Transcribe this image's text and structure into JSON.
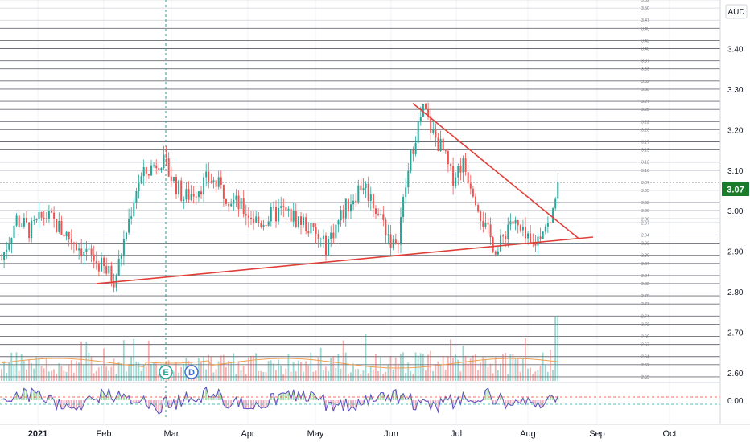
{
  "chart_data": {
    "type": "candlestick",
    "currency_label": "AUD",
    "last_price_label": "3.07",
    "y_range": [
      2.58,
      3.52
    ],
    "y_ticks": [
      "3.40",
      "3.30",
      "3.20",
      "3.10",
      "3.00",
      "2.90",
      "2.80",
      "2.70",
      "2.60"
    ],
    "x_ticks": [
      "2021",
      "Feb",
      "Mar",
      "Apr",
      "May",
      "Jun",
      "Jul",
      "Aug",
      "Sep",
      "Oct"
    ],
    "horizontal_levels": [
      3.52,
      3.5,
      3.47,
      3.45,
      3.42,
      3.4,
      3.37,
      3.35,
      3.32,
      3.3,
      3.27,
      3.25,
      3.22,
      3.2,
      3.17,
      3.15,
      3.12,
      3.1,
      3.07,
      3.05,
      3.02,
      3.0,
      2.98,
      2.97,
      2.94,
      2.92,
      2.89,
      2.87,
      2.84,
      2.82,
      2.79,
      2.77,
      2.74,
      2.72,
      2.69,
      2.67,
      2.64,
      2.62,
      2.59
    ],
    "level_labels": [
      "3.52",
      "3.50",
      "3.47",
      "3.45",
      "3.42",
      "3.40",
      "3.37",
      "3.35",
      "3.32",
      "3.30",
      "3.27",
      "3.25",
      "3.22",
      "3.20",
      "3.17",
      "3.15",
      "3.12",
      "3.10",
      "3.07",
      "3.05",
      "3.02",
      "3.00",
      "2.98",
      "2.97",
      "2.94",
      "2.92",
      "2.89",
      "2.87",
      "2.84",
      "2.82",
      "2.79",
      "2.77",
      "2.74",
      "2.72",
      "2.69",
      "2.67",
      "2.64",
      "2.62",
      "2.59"
    ],
    "trendlines": [
      {
        "name": "resistance",
        "from": [
          "Jun",
          3.265
        ],
        "to": [
          "Aug",
          2.93
        ],
        "color": "#e0403a"
      },
      {
        "name": "support",
        "from": [
          "Feb",
          2.82
        ],
        "to": [
          "Aug",
          2.935
        ],
        "color": "#e0403a"
      }
    ],
    "price_path": [
      [
        "2021",
        2.88
      ],
      [
        "2021",
        2.98
      ],
      [
        "2021",
        2.95
      ],
      [
        "2021",
        2.99
      ],
      [
        "Feb",
        2.83
      ],
      [
        "Feb",
        3.07
      ],
      [
        "Feb",
        3.13
      ],
      [
        "Mar",
        3.03
      ],
      [
        "Mar",
        3.08
      ],
      [
        "Mar",
        3.02
      ],
      [
        "Apr",
        2.97
      ],
      [
        "Apr",
        3.0
      ],
      [
        "Apr",
        2.97
      ],
      [
        "May",
        2.91
      ],
      [
        "May",
        3.0
      ],
      [
        "May",
        3.07
      ],
      [
        "May",
        2.98
      ],
      [
        "Jun",
        2.9
      ],
      [
        "Jun",
        3.05
      ],
      [
        "Jun",
        3.18
      ],
      [
        "Jun",
        3.25
      ],
      [
        "Jun",
        3.19
      ],
      [
        "Jun",
        3.15
      ],
      [
        "Jun",
        3.08
      ],
      [
        "Jul",
        3.12
      ],
      [
        "Jul",
        3.05
      ],
      [
        "Jul",
        2.95
      ],
      [
        "Jul",
        2.9
      ],
      [
        "Jul",
        2.98
      ],
      [
        "Jul",
        2.94
      ],
      [
        "Aug",
        2.91
      ],
      [
        "Aug",
        2.93
      ],
      [
        "Aug",
        2.97
      ],
      [
        "Aug",
        2.96
      ],
      [
        "Aug",
        3.07
      ]
    ],
    "events": [
      "E",
      "D"
    ],
    "oscillator": {
      "zero_label": "0.00",
      "upper_ref": "dashed red",
      "lower_ref": "dashed green"
    },
    "colors": {
      "up": "#26a69a",
      "down": "#ef5350",
      "trend": "#e0403a",
      "last_price": "#1a7c2a",
      "volume_ma": "#f0a050",
      "osc_line": "#5b4fc2"
    },
    "grid": true
  }
}
